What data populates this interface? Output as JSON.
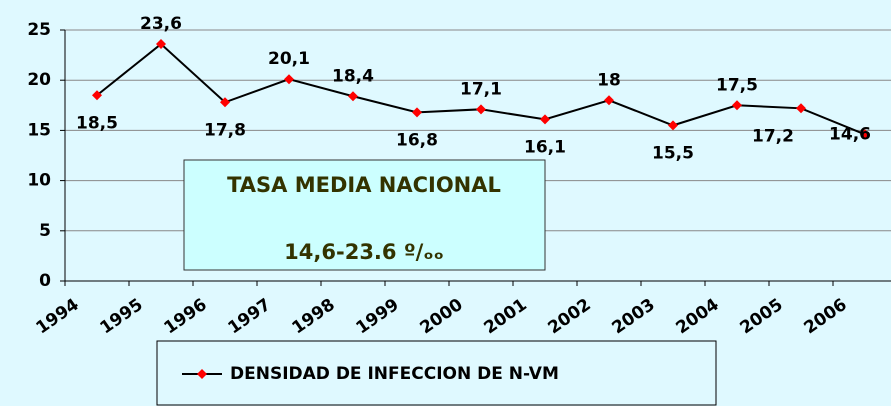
{
  "chart_data": {
    "type": "line",
    "categories": [
      "1994",
      "1995",
      "1996",
      "1997",
      "1998",
      "1999",
      "2000",
      "2001",
      "2002",
      "2003",
      "2004",
      "2005",
      "2006"
    ],
    "series": [
      {
        "name": "DENSIDAD DE INFECCION DE N-VM",
        "line_color": "#000000",
        "marker_color": "#ff0000",
        "values": [
          18.5,
          23.6,
          17.8,
          20.1,
          18.4,
          16.8,
          17.1,
          16.1,
          18,
          15.5,
          17.5,
          17.2,
          14.6
        ],
        "value_labels": [
          "18,5",
          "23,6",
          "17,8",
          "20,1",
          "18,4",
          "16,8",
          "17,1",
          "16,1",
          "18",
          "15,5",
          "17,5",
          "17,2",
          "14,6"
        ]
      }
    ],
    "ylim": [
      0,
      25
    ],
    "yticks": [
      0,
      5,
      10,
      15,
      20,
      25
    ],
    "grid": true,
    "annotation": {
      "title": "TASA MEDIA NACIONAL",
      "text": "14,6-23.6 º/ₒₒ"
    }
  }
}
